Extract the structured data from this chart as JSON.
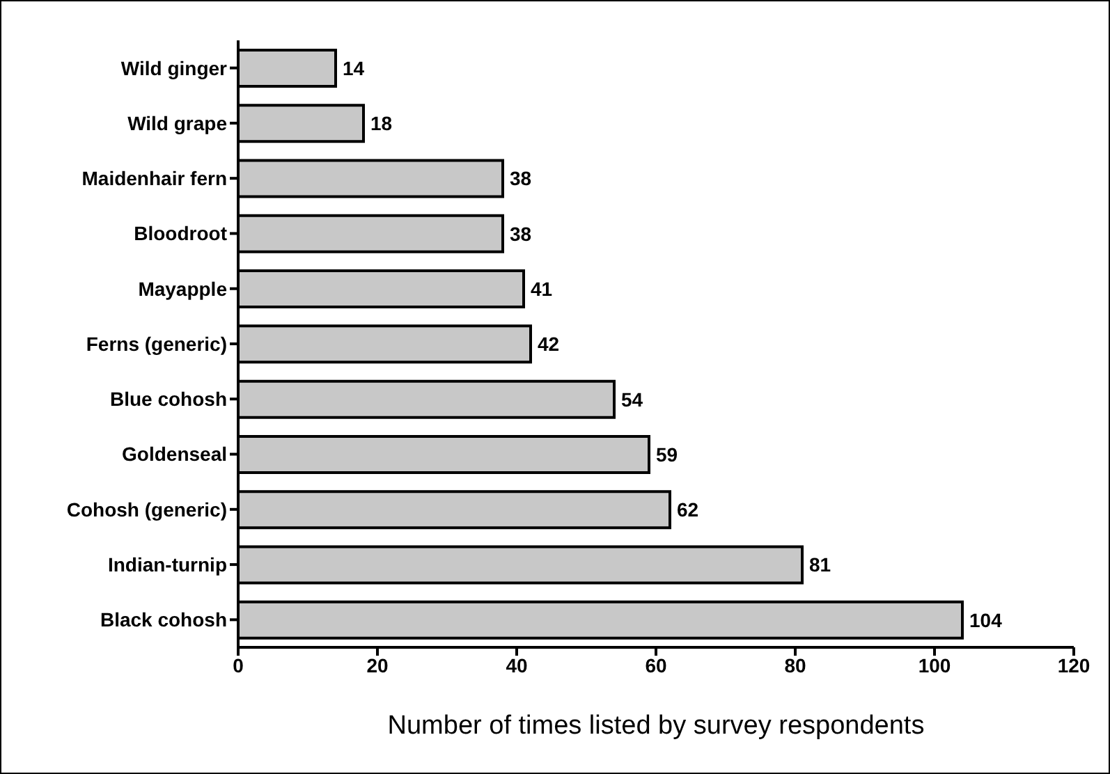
{
  "chart_data": {
    "type": "bar",
    "orientation": "horizontal",
    "xlabel": "Number of times listed by survey respondents",
    "categories": [
      "Wild ginger",
      "Wild grape",
      "Maidenhair fern",
      "Bloodroot",
      "Mayapple",
      "Ferns (generic)",
      "Blue cohosh",
      "Goldenseal",
      "Cohosh (generic)",
      "Indian-turnip",
      "Black cohosh"
    ],
    "values": [
      14,
      18,
      38,
      38,
      41,
      42,
      54,
      59,
      62,
      81,
      104
    ],
    "color": "#c8c8c8",
    "xlim": [
      0,
      120
    ],
    "xticks": [
      0,
      20,
      40,
      60,
      80,
      100,
      120
    ],
    "grid": false,
    "legend": false,
    "data_labels": true
  }
}
